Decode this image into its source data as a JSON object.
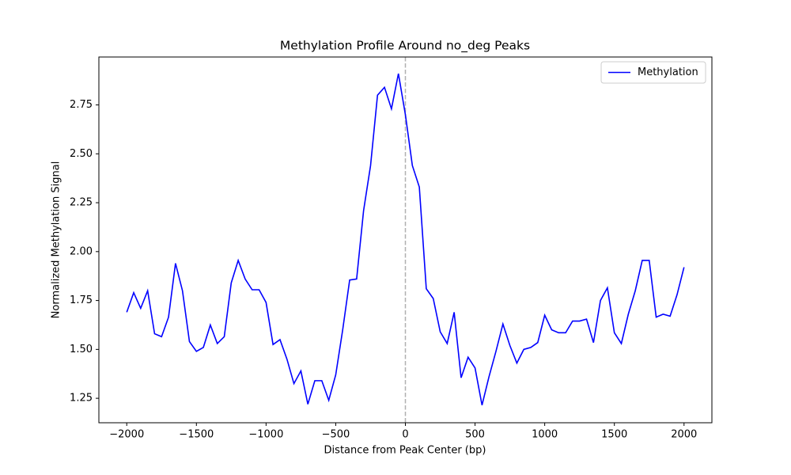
{
  "chart_data": {
    "type": "line",
    "title": "Methylation Profile Around no_deg Peaks",
    "xlabel": "Distance from Peak Center (bp)",
    "ylabel": "Normalized Methylation Signal",
    "x": [
      -2000,
      -1950,
      -1900,
      -1850,
      -1800,
      -1750,
      -1700,
      -1650,
      -1600,
      -1550,
      -1500,
      -1450,
      -1400,
      -1350,
      -1300,
      -1250,
      -1200,
      -1150,
      -1100,
      -1050,
      -1000,
      -950,
      -900,
      -850,
      -800,
      -750,
      -700,
      -650,
      -600,
      -550,
      -500,
      -450,
      -400,
      -350,
      -300,
      -250,
      -200,
      -150,
      -100,
      -50,
      0,
      50,
      100,
      150,
      200,
      250,
      300,
      350,
      400,
      450,
      500,
      550,
      600,
      650,
      700,
      750,
      800,
      850,
      900,
      950,
      1000,
      1050,
      1100,
      1150,
      1200,
      1250,
      1300,
      1350,
      1400,
      1450,
      1500,
      1550,
      1600,
      1650,
      1700,
      1750,
      1800,
      1850,
      1900,
      1950,
      2000
    ],
    "series": [
      {
        "name": "Methylation",
        "color": "#0000ff",
        "values": [
          1.69,
          1.79,
          1.71,
          1.8,
          1.58,
          1.565,
          1.665,
          1.94,
          1.8,
          1.54,
          1.49,
          1.51,
          1.625,
          1.53,
          1.565,
          1.84,
          1.955,
          1.86,
          1.805,
          1.805,
          1.74,
          1.525,
          1.55,
          1.45,
          1.325,
          1.39,
          1.22,
          1.34,
          1.34,
          1.24,
          1.37,
          1.6,
          1.855,
          1.86,
          2.21,
          2.44,
          2.8,
          2.84,
          2.73,
          2.91,
          2.7,
          2.44,
          2.33,
          1.81,
          1.76,
          1.59,
          1.53,
          1.69,
          1.355,
          1.46,
          1.405,
          1.215,
          1.36,
          1.49,
          1.63,
          1.52,
          1.43,
          1.5,
          1.51,
          1.535,
          1.675,
          1.6,
          1.585,
          1.585,
          1.645,
          1.645,
          1.655,
          1.535,
          1.75,
          1.815,
          1.585,
          1.53,
          1.68,
          1.8,
          1.955,
          1.955,
          1.665,
          1.68,
          1.67,
          1.78,
          1.92
        ]
      }
    ],
    "vline_x": 0,
    "vline_color": "#b0b0b0",
    "xlim": [
      -2200,
      2200
    ],
    "ylim": [
      1.125,
      2.995
    ],
    "xticks": [
      {
        "value": -2000,
        "label": "−2000"
      },
      {
        "value": -1500,
        "label": "−1500"
      },
      {
        "value": -1000,
        "label": "−1000"
      },
      {
        "value": -500,
        "label": "−500"
      },
      0,
      500,
      1000,
      1500,
      2000
    ],
    "yticks": [
      {
        "value": 1.25,
        "label": "1.25"
      },
      {
        "value": 1.5,
        "label": "1.50"
      },
      {
        "value": 1.75,
        "label": "1.75"
      },
      {
        "value": 2.0,
        "label": "2.00"
      },
      {
        "value": 2.25,
        "label": "2.25"
      },
      {
        "value": 2.5,
        "label": "2.50"
      },
      {
        "value": 2.75,
        "label": "2.75"
      }
    ],
    "legend": "upper right"
  }
}
